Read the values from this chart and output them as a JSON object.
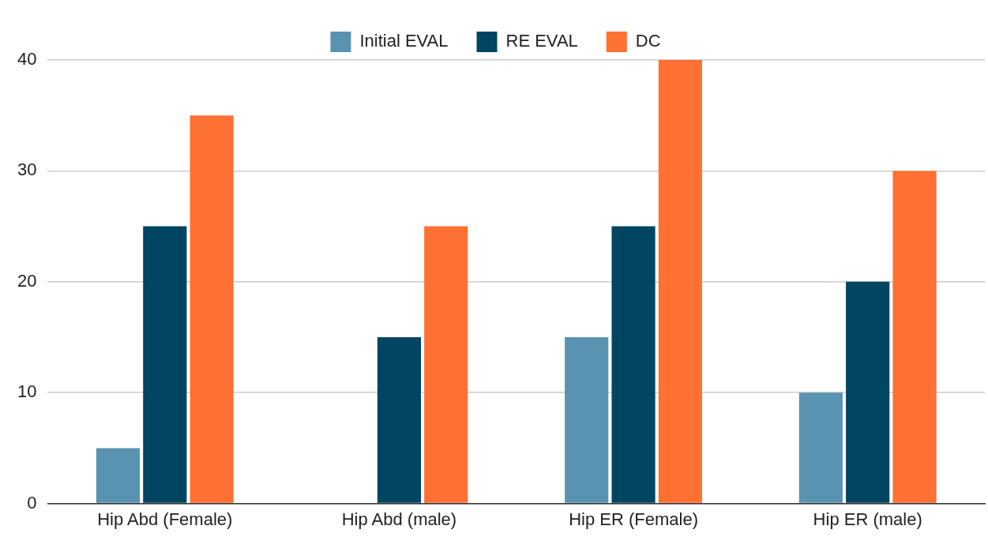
{
  "chart_data": {
    "type": "bar",
    "categories": [
      "Hip Abd (Female)",
      "Hip Abd (male)",
      "Hip ER (Female)",
      "Hip ER (male)"
    ],
    "series": [
      {
        "name": "Initial EVAL",
        "color": "#5a93b1",
        "values": [
          5,
          null,
          15,
          10
        ]
      },
      {
        "name": "RE EVAL",
        "color": "#004561",
        "values": [
          25,
          15,
          25,
          20
        ]
      },
      {
        "name": "DC",
        "color": "#ff7033",
        "values": [
          35,
          25,
          40,
          30
        ]
      }
    ],
    "ylim": [
      0,
      40
    ],
    "yticks": [
      0,
      10,
      20,
      30,
      40
    ],
    "grid": "y",
    "legend": "top"
  }
}
